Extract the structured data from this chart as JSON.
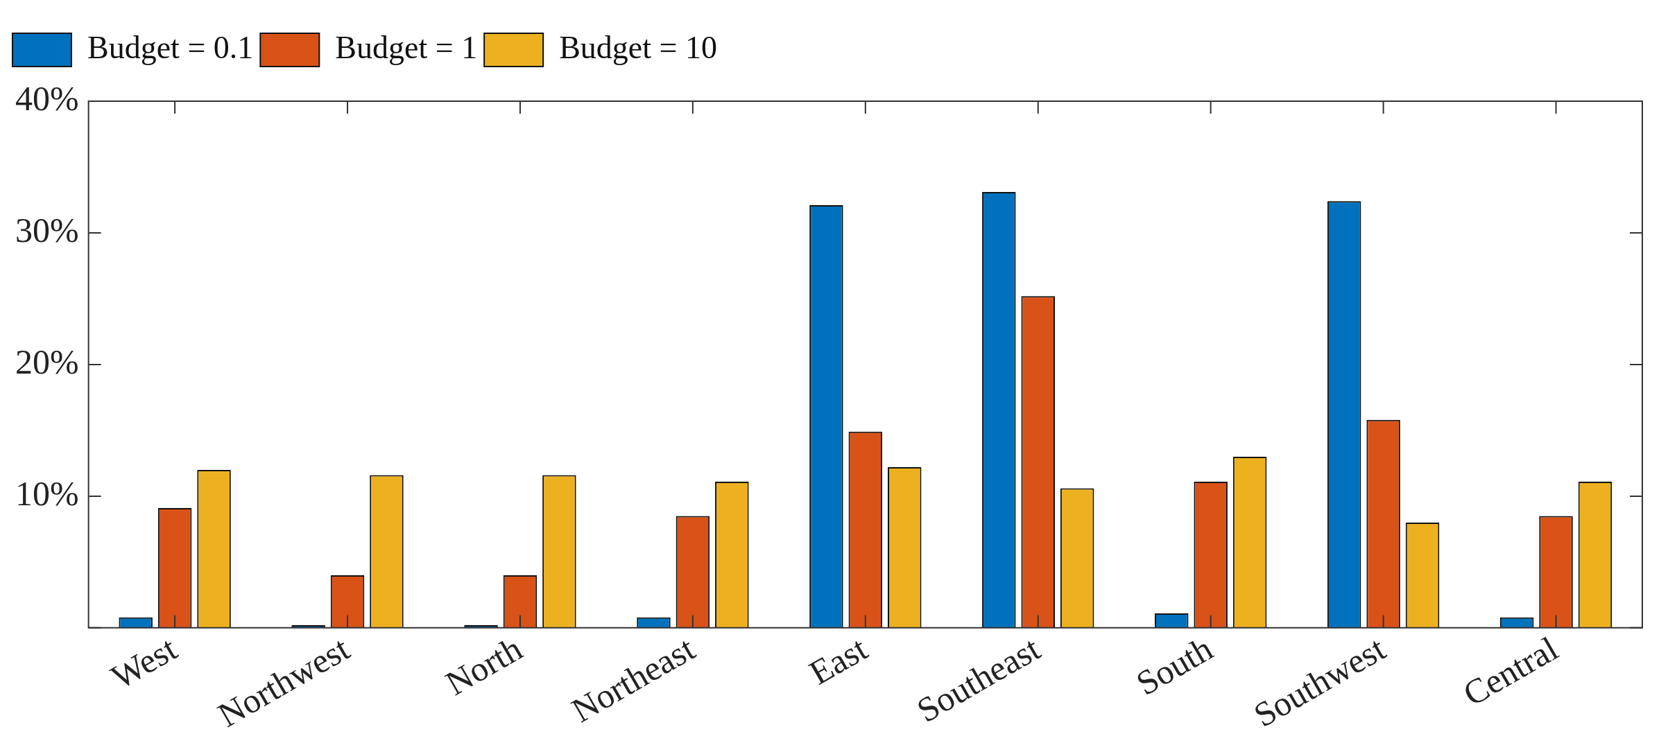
{
  "chart_data": {
    "type": "bar",
    "categories": [
      "West",
      "Northwest",
      "North",
      "Northeast",
      "East",
      "Southeast",
      "South",
      "Southwest",
      "Central"
    ],
    "series": [
      {
        "name": "Budget = 0.1",
        "color": "#0072bd",
        "values": [
          0.8,
          0.2,
          0.2,
          0.8,
          32.1,
          33.1,
          1.1,
          32.4,
          0.8
        ]
      },
      {
        "name": "Budget = 1",
        "color": "#d95319",
        "values": [
          9.1,
          4.0,
          4.0,
          8.5,
          14.9,
          25.2,
          11.1,
          15.8,
          8.5
        ]
      },
      {
        "name": "Budget = 10",
        "color": "#edb120",
        "values": [
          12.0,
          11.6,
          11.6,
          11.1,
          12.2,
          10.6,
          13.0,
          8.0,
          11.1
        ]
      }
    ],
    "ylim": [
      0,
      40
    ],
    "yticks": [
      {
        "value": 0,
        "label": null
      },
      {
        "value": 10,
        "label": "10%"
      },
      {
        "value": 20,
        "label": "20%"
      },
      {
        "value": 30,
        "label": "30%"
      },
      {
        "value": 40,
        "label": "40%"
      }
    ],
    "grid": false,
    "legend": "top left"
  }
}
